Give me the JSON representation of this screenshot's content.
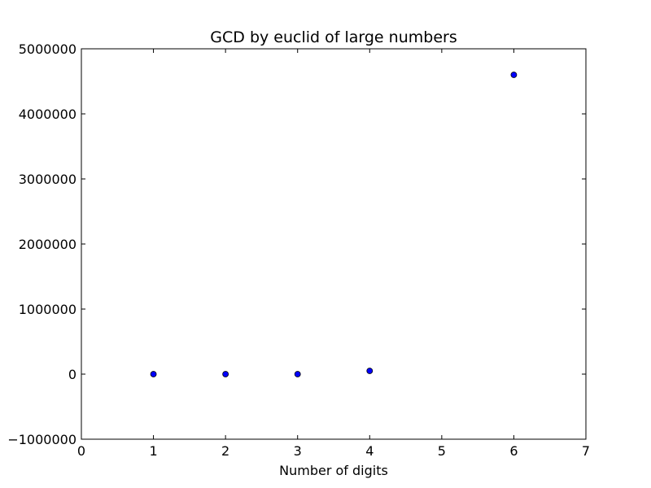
{
  "chart_data": {
    "type": "scatter",
    "title": "GCD by euclid of large numbers",
    "xlabel": "Number of digits",
    "ylabel": "",
    "xlim": [
      0,
      7
    ],
    "ylim": [
      -1000000,
      5000000
    ],
    "xticks": [
      0,
      1,
      2,
      3,
      4,
      5,
      6,
      7
    ],
    "yticks": [
      -1000000,
      0,
      1000000,
      2000000,
      3000000,
      4000000,
      5000000
    ],
    "xtick_labels": [
      "0",
      "1",
      "2",
      "3",
      "4",
      "5",
      "6",
      "7"
    ],
    "ytick_labels": [
      "−1000000",
      "0",
      "1000000",
      "2000000",
      "3000000",
      "4000000",
      "5000000"
    ],
    "grid": false,
    "series": [
      {
        "color": "#0000ff",
        "x": [
          1,
          2,
          3,
          4,
          6
        ],
        "y": [
          0,
          0,
          0,
          50000,
          4600000
        ]
      }
    ]
  }
}
